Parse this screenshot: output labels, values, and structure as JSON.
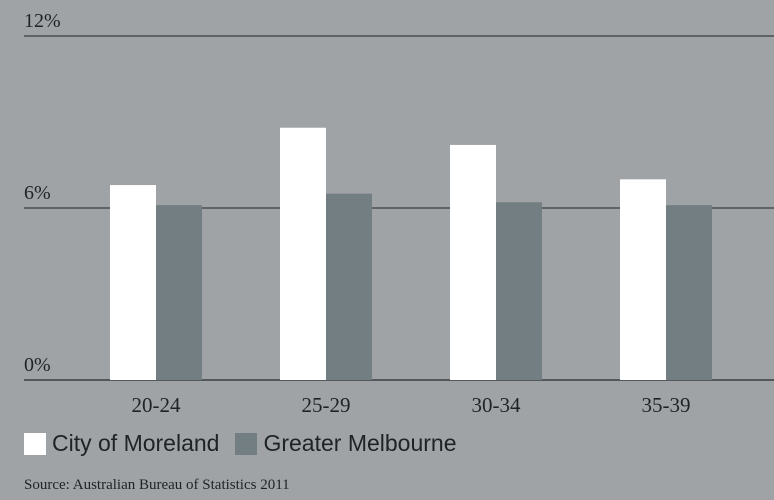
{
  "chart_data": {
    "type": "bar",
    "categories": [
      "20-24",
      "25-29",
      "30-34",
      "35-39"
    ],
    "series": [
      {
        "name": "City of Moreland",
        "values": [
          6.8,
          8.8,
          8.2,
          7.0
        ],
        "color": "#ffffff"
      },
      {
        "name": "Greater Melbourne",
        "values": [
          6.1,
          6.5,
          6.2,
          6.1
        ],
        "color": "#727e82"
      }
    ],
    "yticks": [
      {
        "value": 0,
        "label": "0%"
      },
      {
        "value": 6,
        "label": "6%"
      },
      {
        "value": 12,
        "label": "12%"
      }
    ],
    "ylim": [
      0,
      12
    ],
    "grid": true,
    "legend_position": "bottom-left"
  },
  "source": "Source: Australian Bureau of Statistics 2011"
}
